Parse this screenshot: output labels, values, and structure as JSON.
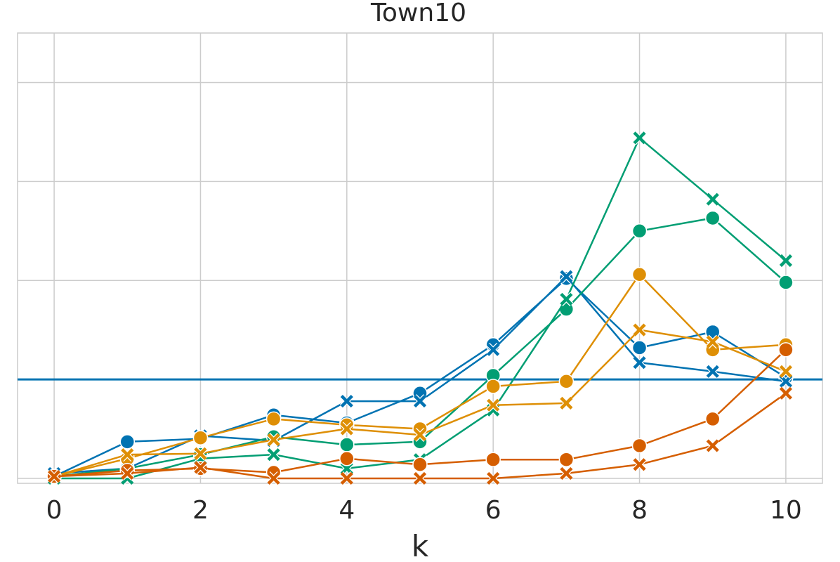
{
  "chart_data": {
    "type": "line",
    "title": "Town10",
    "xlabel": "k",
    "ylabel": "",
    "x_ticks": [
      0,
      2,
      4,
      6,
      8,
      10
    ],
    "xlim": [
      -0.5,
      10.5
    ],
    "ylim": [
      -0.05,
      4.5
    ],
    "y_gridlines": [
      0,
      1,
      2,
      3,
      4
    ],
    "grid": true,
    "legend": "none",
    "reference_line": {
      "y": 1.0,
      "color": "#0173b2"
    },
    "x": [
      0,
      1,
      2,
      3,
      4,
      5,
      6,
      7,
      8,
      9,
      10
    ],
    "series": [
      {
        "color": "#0173b2",
        "marker": "circle",
        "values": [
          0.02,
          0.37,
          0.4,
          0.64,
          0.56,
          0.86,
          1.35,
          2.02,
          1.32,
          1.48,
          1.02
        ]
      },
      {
        "color": "#0173b2",
        "marker": "x",
        "values": [
          0.05,
          0.1,
          0.43,
          0.38,
          0.78,
          0.78,
          1.3,
          2.04,
          1.17,
          1.08,
          0.98
        ]
      },
      {
        "color": "#029e73",
        "marker": "circle",
        "values": [
          0.02,
          0.1,
          0.24,
          0.42,
          0.34,
          0.37,
          1.04,
          1.71,
          2.5,
          2.63,
          1.98
        ]
      },
      {
        "color": "#029e73",
        "marker": "x",
        "values": [
          0.0,
          0.0,
          0.2,
          0.24,
          0.1,
          0.19,
          0.69,
          1.81,
          3.44,
          2.82,
          2.2
        ]
      },
      {
        "color": "#de8f05",
        "marker": "circle",
        "values": [
          0.02,
          0.2,
          0.41,
          0.6,
          0.54,
          0.5,
          0.93,
          0.98,
          2.06,
          1.3,
          1.35
        ]
      },
      {
        "color": "#de8f05",
        "marker": "x",
        "values": [
          0.02,
          0.24,
          0.25,
          0.39,
          0.5,
          0.44,
          0.74,
          0.76,
          1.5,
          1.38,
          1.08
        ]
      },
      {
        "color": "#d55e00",
        "marker": "circle",
        "values": [
          0.02,
          0.08,
          0.1,
          0.06,
          0.2,
          0.14,
          0.19,
          0.19,
          0.33,
          0.6,
          1.3
        ]
      },
      {
        "color": "#d55e00",
        "marker": "x",
        "values": [
          0.02,
          0.05,
          0.11,
          0.0,
          0.0,
          0.0,
          0.0,
          0.05,
          0.14,
          0.33,
          0.86
        ]
      }
    ]
  }
}
